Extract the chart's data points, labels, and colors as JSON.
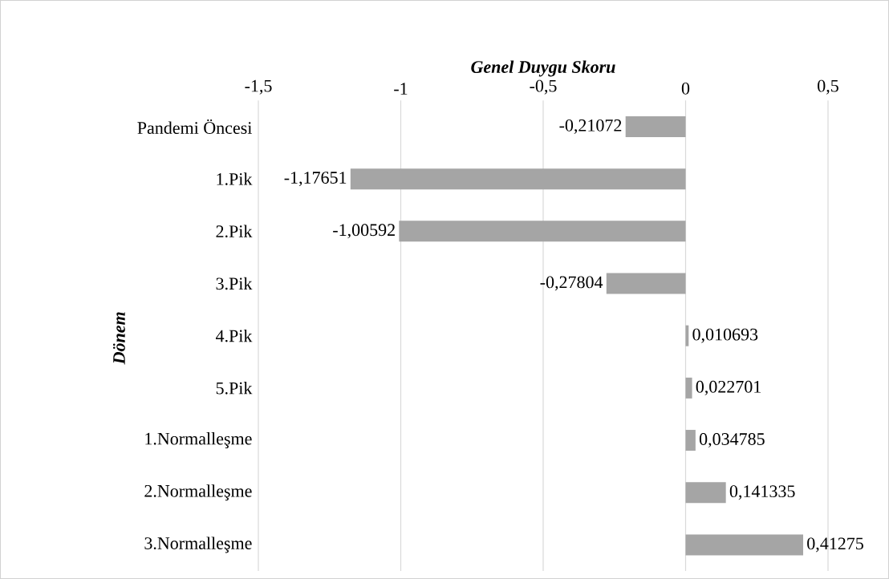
{
  "chart_data": {
    "type": "bar",
    "orientation": "horizontal",
    "xlabel": "Genel Duygu Skoru",
    "ylabel": "Dönem",
    "categories": [
      "Pandemi Öncesi",
      "1.Pik",
      "2.Pik",
      "3.Pik",
      "4.Pik",
      "5.Pik",
      "1.Normalleşme",
      "2.Normalleşme",
      "3.Normalleşme"
    ],
    "values": [
      -0.21072,
      -1.17651,
      -1.00592,
      -0.27804,
      0.010693,
      0.022701,
      0.034785,
      0.141335,
      0.41275
    ],
    "value_labels": [
      "-0,21072",
      "-1,17651",
      "-1,00592",
      "-0,27804",
      "0,010693",
      "0,022701",
      "0,034785",
      "0,141335",
      "0,41275"
    ],
    "color": "#a5a5a5",
    "xlim": [
      -1.5,
      0.5
    ],
    "xticks": [
      {
        "value": -1.5,
        "label": "-1,5"
      },
      {
        "value": -1,
        "label": "-1"
      },
      {
        "value": -0.5,
        "label": "-0,5"
      },
      {
        "value": 0,
        "label": "0"
      },
      {
        "value": 0.5,
        "label": "0,5"
      }
    ],
    "grid": "x"
  }
}
